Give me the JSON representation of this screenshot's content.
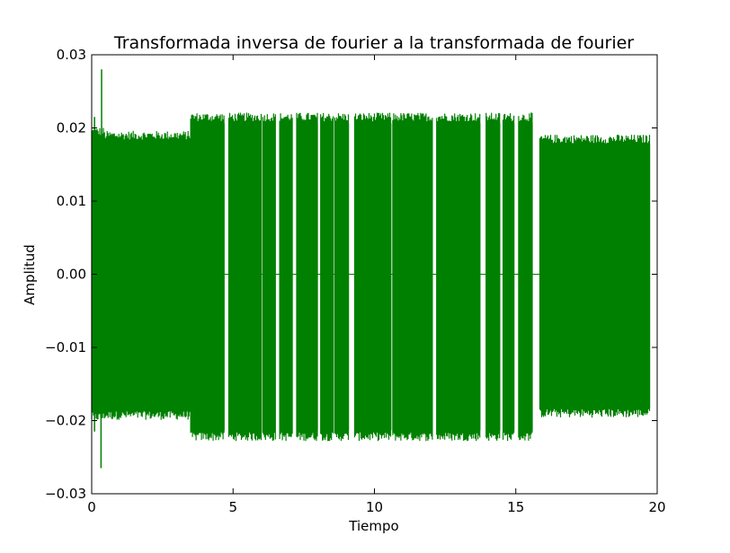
{
  "chart_data": {
    "type": "line",
    "title": "Transformada inversa de fourier a la transformada de fourier",
    "xlabel": "Tiempo",
    "ylabel": "Amplitud",
    "xlim": [
      0,
      20
    ],
    "ylim": [
      -0.03,
      0.03
    ],
    "x_ticks": [
      0,
      5,
      10,
      15,
      20
    ],
    "x_tick_labels": [
      "0",
      "5",
      "10",
      "15",
      "20"
    ],
    "y_ticks": [
      -0.03,
      -0.02,
      -0.01,
      0.0,
      0.01,
      0.02,
      0.03
    ],
    "y_tick_labels": [
      "−0.03",
      "−0.02",
      "−0.01",
      "0.00",
      "0.01",
      "0.02",
      "0.03"
    ],
    "grid": false,
    "legend": false,
    "color": "#008000",
    "series": [
      {
        "envelope_segments": [
          {
            "x_start": 0.0,
            "x_end": 0.45,
            "upper": 0.0195,
            "lower": -0.0195
          },
          {
            "x_start": 0.45,
            "x_end": 3.5,
            "upper": 0.019,
            "lower": -0.0193
          },
          {
            "x_start": 3.5,
            "x_end": 4.7,
            "upper": 0.0215,
            "lower": -0.0222
          },
          {
            "x_start": 4.85,
            "x_end": 6.0,
            "upper": 0.0215,
            "lower": -0.0222
          },
          {
            "x_start": 6.05,
            "x_end": 6.5,
            "upper": 0.0215,
            "lower": -0.0222
          },
          {
            "x_start": 6.65,
            "x_end": 7.1,
            "upper": 0.0215,
            "lower": -0.0222
          },
          {
            "x_start": 7.25,
            "x_end": 8.0,
            "upper": 0.0215,
            "lower": -0.0222
          },
          {
            "x_start": 8.1,
            "x_end": 8.55,
            "upper": 0.0215,
            "lower": -0.0222
          },
          {
            "x_start": 8.6,
            "x_end": 9.1,
            "upper": 0.0215,
            "lower": -0.0222
          },
          {
            "x_start": 9.3,
            "x_end": 10.6,
            "upper": 0.0215,
            "lower": -0.0222
          },
          {
            "x_start": 10.65,
            "x_end": 12.05,
            "upper": 0.0215,
            "lower": -0.0222
          },
          {
            "x_start": 12.2,
            "x_end": 13.75,
            "upper": 0.0215,
            "lower": -0.0222
          },
          {
            "x_start": 13.95,
            "x_end": 14.45,
            "upper": 0.0215,
            "lower": -0.0222
          },
          {
            "x_start": 14.55,
            "x_end": 14.95,
            "upper": 0.0215,
            "lower": -0.0222
          },
          {
            "x_start": 15.1,
            "x_end": 15.6,
            "upper": 0.0215,
            "lower": -0.0222
          },
          {
            "x_start": 15.85,
            "x_end": 19.75,
            "upper": 0.0185,
            "lower": -0.019
          }
        ],
        "spikes": [
          {
            "x": 0.35,
            "y": 0.028
          },
          {
            "x": 0.33,
            "y": -0.0265
          },
          {
            "x": 0.1,
            "y": 0.0215
          },
          {
            "x": 0.1,
            "y": -0.0215
          }
        ]
      }
    ]
  }
}
